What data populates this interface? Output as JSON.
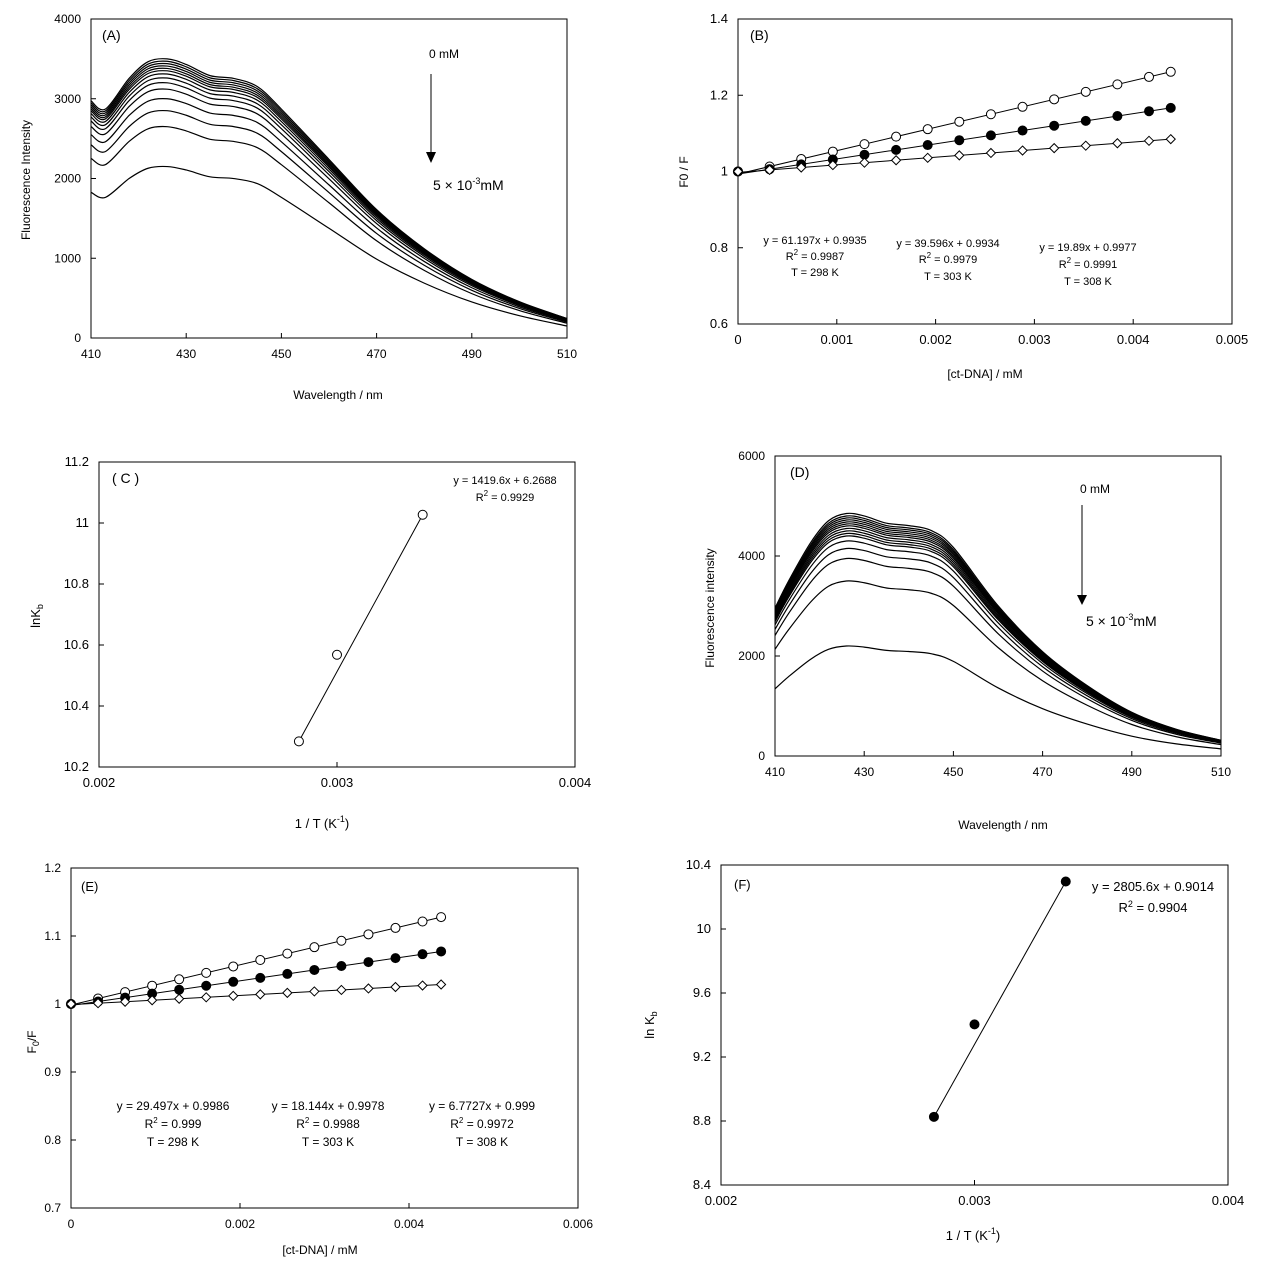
{
  "chart_data": [
    {
      "id": "A",
      "type": "line",
      "panel_label": "(A)",
      "xlabel": "Wavelength / nm",
      "ylabel": "Fluorescence Intensity",
      "xlim": [
        410,
        510
      ],
      "ylim": [
        0,
        4000
      ],
      "xticks": [
        "410",
        "430",
        "450",
        "470",
        "490",
        "510"
      ],
      "yticks": [
        "0",
        "1000",
        "2000",
        "3000",
        "4000"
      ],
      "annotations": {
        "start": "0 mM",
        "end_prefix": "5 × 10",
        "end_exp": "-3",
        "end_unit": "mM"
      },
      "x": [
        410,
        413,
        418,
        422,
        426,
        430,
        435,
        440,
        445,
        450,
        460,
        470,
        480,
        490,
        500,
        510
      ],
      "shape": [
        0.85,
        0.82,
        0.93,
        0.99,
        1.0,
        0.98,
        0.94,
        0.93,
        0.9,
        0.82,
        0.64,
        0.46,
        0.32,
        0.21,
        0.13,
        0.07
      ],
      "series_peaks": [
        3500,
        3470,
        3440,
        3410,
        3380,
        3350,
        3310,
        3260,
        3200,
        3120,
        3000,
        2850,
        2650,
        2150
      ]
    },
    {
      "id": "B",
      "type": "scatter",
      "panel_label": "(B)",
      "xlabel": "[ct-DNA] / mM",
      "ylabel": "F0 / F",
      "xlim": [
        0,
        0.005
      ],
      "ylim": [
        0.6,
        1.4
      ],
      "xticks": [
        "0",
        "0.001",
        "0.002",
        "0.003",
        "0.004",
        "0.005"
      ],
      "yticks": [
        "0.6",
        "0.8",
        "1",
        "1.2",
        "1.4"
      ],
      "series": [
        {
          "name": "298 K",
          "marker": "open-circle",
          "slope": 61.197,
          "intercept": 0.9935,
          "eq": "y = 61.197x + 0.9935",
          "r2": "0.9987",
          "T": "T = 298 K"
        },
        {
          "name": "303 K",
          "marker": "filled-circle",
          "slope": 39.596,
          "intercept": 0.9934,
          "eq": "y = 39.596x + 0.9934",
          "r2": "0.9979",
          "T": "T = 303 K"
        },
        {
          "name": "308 K",
          "marker": "open-diamond",
          "slope": 19.89,
          "intercept": 0.9977,
          "eq": "y = 19.89x + 0.9977",
          "r2": "0.9991",
          "T": "T = 308 K"
        }
      ],
      "x": [
        0,
        0.00032,
        0.00064,
        0.00096,
        0.00128,
        0.0016,
        0.00192,
        0.00224,
        0.00256,
        0.00288,
        0.0032,
        0.00352,
        0.00384,
        0.00416,
        0.00438
      ]
    },
    {
      "id": "C",
      "type": "scatter",
      "panel_label": "( C )",
      "xlabel_prefix": "1 / T (K",
      "xlabel_exp": "-1",
      "xlabel_suffix": ")",
      "ylabel": "lnK",
      "ylabel_sub": "b",
      "xlim": [
        0.002,
        0.004
      ],
      "ylim": [
        10.2,
        11.2
      ],
      "xticks": [
        "0.002",
        "0.003",
        "0.004"
      ],
      "yticks": [
        "10.2",
        "10.4",
        "10.6",
        "10.8",
        "11",
        "11.2"
      ],
      "marker": "open-circle",
      "x": [
        0.00284,
        0.003,
        0.00336
      ],
      "y": [
        10.284,
        10.568,
        11.027
      ],
      "fit": {
        "x": [
          0.00284,
          0.00336
        ]
      },
      "eq": "y = 1419.6x + 6.2688",
      "r2": "0.9929"
    },
    {
      "id": "D",
      "type": "line",
      "panel_label": "(D)",
      "xlabel": "Wavelength / nm",
      "ylabel": "Fluorescence intensity",
      "xlim": [
        410,
        510
      ],
      "ylim": [
        0,
        6000
      ],
      "xticks": [
        "410",
        "430",
        "450",
        "470",
        "490",
        "510"
      ],
      "yticks": [
        "0",
        "2000",
        "4000",
        "6000"
      ],
      "annotations": {
        "start": "0 mM",
        "end_prefix": "5 × 10",
        "end_exp": "-3",
        "end_unit": "mM"
      },
      "x": [
        410,
        413,
        418,
        422,
        426,
        430,
        435,
        440,
        445,
        450,
        460,
        470,
        480,
        490,
        500,
        510
      ],
      "shape": [
        0.61,
        0.72,
        0.88,
        0.97,
        1.0,
        0.99,
        0.96,
        0.95,
        0.93,
        0.86,
        0.62,
        0.43,
        0.29,
        0.18,
        0.11,
        0.065
      ],
      "series_peaks": [
        4850,
        4800,
        4760,
        4720,
        4680,
        4640,
        4600,
        4550,
        4500,
        4450,
        4400,
        4300,
        4150,
        3950,
        3500,
        2200
      ]
    },
    {
      "id": "E",
      "type": "scatter",
      "panel_label": "(E)",
      "xlabel": "[ct-DNA] / mM",
      "ylabel": "F0/F",
      "xlim": [
        0,
        0.006
      ],
      "ylim": [
        0.7,
        1.2
      ],
      "xticks": [
        "0",
        "0.002",
        "0.004",
        "0.006"
      ],
      "yticks": [
        "0.7",
        "0.8",
        "0.9",
        "1",
        "1.1",
        "1.2"
      ],
      "series": [
        {
          "name": "298 K",
          "marker": "open-circle",
          "slope": 29.497,
          "intercept": 0.9986,
          "eq": "y = 29.497x + 0.9986",
          "r2": "0.999",
          "T": "T = 298 K"
        },
        {
          "name": "303 K",
          "marker": "filled-circle",
          "slope": 18.144,
          "intercept": 0.9978,
          "eq": "y = 18.144x + 0.9978",
          "r2": "0.9988",
          "T": "T = 303 K"
        },
        {
          "name": "308 K",
          "marker": "open-diamond",
          "slope": 6.7727,
          "intercept": 0.999,
          "eq": "y = 6.7727x + 0.999",
          "r2": "0.9972",
          "T": "T = 308 K"
        }
      ],
      "x": [
        0,
        0.00032,
        0.00064,
        0.00096,
        0.00128,
        0.0016,
        0.00192,
        0.00224,
        0.00256,
        0.00288,
        0.0032,
        0.00352,
        0.00384,
        0.00416,
        0.00438
      ]
    },
    {
      "id": "F",
      "type": "scatter",
      "panel_label": "(F)",
      "xlabel_prefix": "1 / T (K",
      "xlabel_exp": "-1",
      "xlabel_suffix": ")",
      "ylabel": "ln K",
      "ylabel_sub": "b",
      "xlim": [
        0.002,
        0.004
      ],
      "ylim": [
        8.4,
        10.4
      ],
      "xticks": [
        "0.002",
        "0.003",
        "0.004"
      ],
      "yticks": [
        "8.4",
        "8.8",
        "9.2",
        "9.6",
        "10",
        "10.4"
      ],
      "marker": "filled-circle",
      "x": [
        0.00284,
        0.003,
        0.00336
      ],
      "y": [
        8.826,
        9.404,
        10.297
      ],
      "fit": {
        "x": [
          0.00284,
          0.00336
        ]
      },
      "eq": "y = 2805.6x + 0.9014",
      "r2": "0.9904"
    }
  ]
}
